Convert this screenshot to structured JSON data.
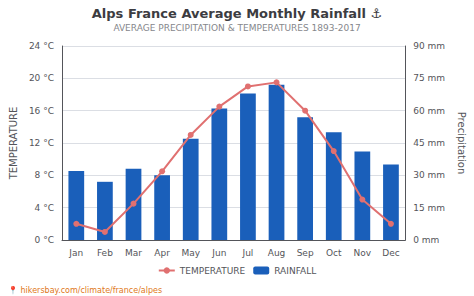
{
  "chart_data": {
    "type": "bar",
    "title": "Alps France Average Monthly Rainfall ⚓",
    "subtitle": "AVERAGE PRECIPITATION & TEMPERATURES 1893-2017",
    "ylabel": "TEMPERATURE",
    "y2label": "Precipitation",
    "annotations": [
      "📍 hikersbay.com/climate/france/alpes"
    ],
    "categories": [
      "Jan",
      "Feb",
      "Mar",
      "Apr",
      "May",
      "Jun",
      "Jul",
      "Aug",
      "Sep",
      "Oct",
      "Nov",
      "Dec"
    ],
    "series": [
      {
        "name": "TEMPERATURE",
        "type": "line",
        "marker": "circle",
        "color": "#e07070",
        "values": [
          2.0,
          1.0,
          4.5,
          8.5,
          13.0,
          16.5,
          19.0,
          19.5,
          16.0,
          11.0,
          5.0,
          2.0
        ]
      },
      {
        "name": "RAINFALL",
        "type": "bar",
        "axis": "y2",
        "color": "#1a5fba",
        "values": [
          32,
          27,
          33,
          30,
          47,
          61,
          68,
          72,
          57,
          50,
          41,
          35
        ]
      }
    ],
    "ylim": [
      0,
      24
    ],
    "yticks": [
      {
        "value": 0,
        "label": "0 °C"
      },
      {
        "value": 4,
        "label": "4 °C"
      },
      {
        "value": 8,
        "label": "8 °C"
      },
      {
        "value": 12,
        "label": "12 °C"
      },
      {
        "value": 16,
        "label": "16 °C"
      },
      {
        "value": 20,
        "label": "20 °C"
      },
      {
        "value": 24,
        "label": "24 °C"
      }
    ],
    "y2lim": [
      0,
      90
    ],
    "y2ticks": [
      {
        "value": 0,
        "label": "0 mm"
      },
      {
        "value": 15,
        "label": "15 mm"
      },
      {
        "value": 30,
        "label": "30 mm"
      },
      {
        "value": 45,
        "label": "45 mm"
      },
      {
        "value": 60,
        "label": "60 mm"
      },
      {
        "value": 75,
        "label": "75 mm"
      },
      {
        "value": 90,
        "label": "90 mm"
      }
    ],
    "grid": true,
    "legend": "bottom"
  }
}
